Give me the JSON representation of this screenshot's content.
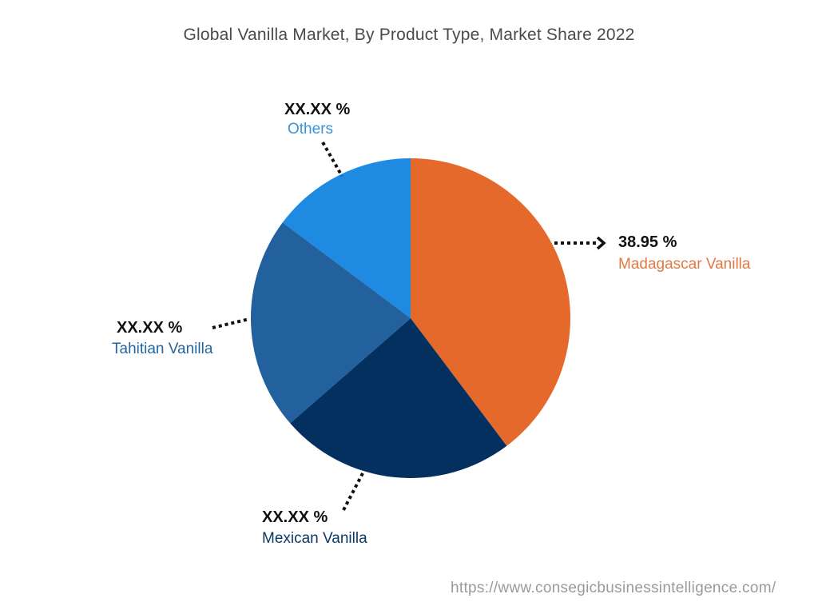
{
  "title": "Global Vanilla Market, By Product Type, Market Share 2022",
  "source_url": "https://www.consegicbusinessintelligence.com/",
  "chart_data": {
    "type": "pie",
    "title": "Global Vanilla Market, By Product Type, Market Share 2022",
    "labels": [
      "Madagascar Vanilla",
      "Mexican Vanilla",
      "Tahitian Vanilla",
      "Others"
    ],
    "values": [
      38.95,
      23.4,
      21.2,
      14.5
    ],
    "display_values": [
      "38.95 %",
      "XX.XX %",
      "XX.XX %",
      "XX.XX %"
    ],
    "colors": [
      "#e4692a",
      "#03305f",
      "#22609e",
      "#1e8ae1"
    ],
    "start_angle_deg": 0,
    "direction": "clockwise",
    "legend": "none (callout labels)"
  },
  "labels": {
    "madagascar": {
      "pct": "38.95 %",
      "name": "Madagascar Vanilla",
      "color": "#e07a45"
    },
    "mexican": {
      "pct": "XX.XX %",
      "name": "Mexican Vanilla",
      "color": "#0b3a66"
    },
    "tahitian": {
      "pct": "XX.XX %",
      "name": "Tahitian Vanilla",
      "color": "#25659f"
    },
    "others": {
      "pct": "XX.XX %",
      "name": "Others",
      "color": "#3a93d6"
    }
  }
}
